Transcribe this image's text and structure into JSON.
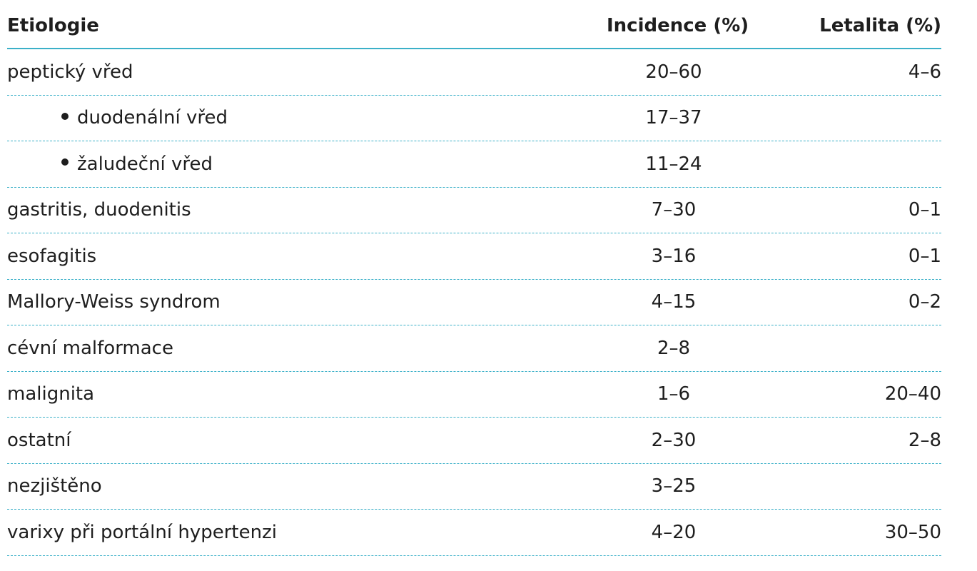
{
  "table": {
    "headers": {
      "etiology": "Etiologie",
      "incidence": "Incidence (%)",
      "lethality": "Letalita (%)"
    },
    "rows": [
      {
        "etiology": "peptický vřed",
        "incidence": "20–60",
        "lethality": "4–6",
        "sub": false
      },
      {
        "etiology": "duodenální vřed",
        "incidence": "17–37",
        "lethality": "",
        "sub": true
      },
      {
        "etiology": "žaludeční vřed",
        "incidence": "11–24",
        "lethality": "",
        "sub": true
      },
      {
        "etiology": "gastritis, duodenitis",
        "incidence": "7–30",
        "lethality": "0–1",
        "sub": false
      },
      {
        "etiology": "esofagitis",
        "incidence": "3–16",
        "lethality": "0–1",
        "sub": false
      },
      {
        "etiology": "Mallory-Weiss syndrom",
        "incidence": "4–15",
        "lethality": "0–2",
        "sub": false
      },
      {
        "etiology": "cévní malformace",
        "incidence": "2–8",
        "lethality": "",
        "sub": false
      },
      {
        "etiology": "malignita",
        "incidence": "1–6",
        "lethality": "20–40",
        "sub": false
      },
      {
        "etiology": "ostatní",
        "incidence": "2–30",
        "lethality": "2–8",
        "sub": false
      },
      {
        "etiology": "nezjištěno",
        "incidence": "3–25",
        "lethality": "",
        "sub": false
      },
      {
        "etiology": "varixy při portální hypertenzi",
        "incidence": "4–20",
        "lethality": "30–50",
        "sub": false
      }
    ]
  }
}
